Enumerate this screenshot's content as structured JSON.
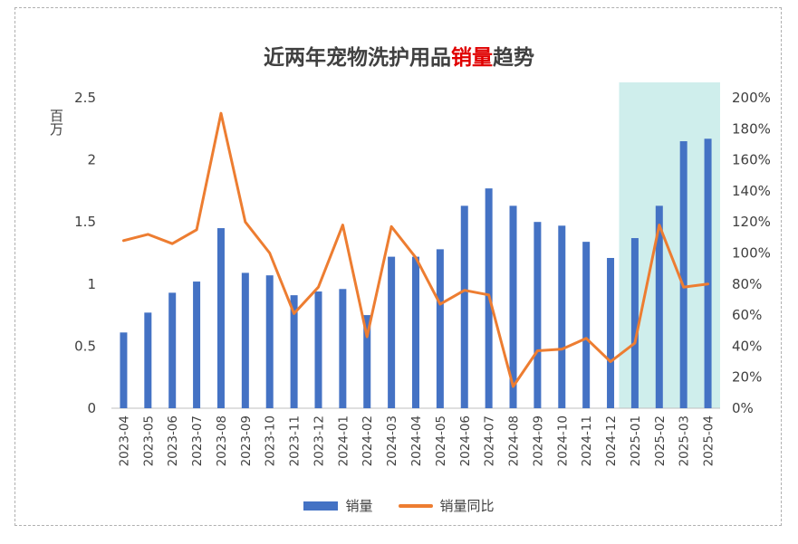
{
  "chart_data": {
    "type": "bar+line",
    "title_prefix": "近两年宠物洗护用品",
    "title_highlight": "销量",
    "title_suffix": "趋势",
    "y_left_unit": "百万",
    "y_left_ticks": [
      "0",
      "0.5",
      "1",
      "1.5",
      "2",
      "2.5"
    ],
    "y_left_range": [
      0,
      2.5
    ],
    "y_right_ticks": [
      "0%",
      "20%",
      "40%",
      "60%",
      "80%",
      "100%",
      "120%",
      "140%",
      "160%",
      "180%",
      "200%"
    ],
    "y_right_range": [
      0,
      200
    ],
    "categories": [
      "2023-04",
      "2023-05",
      "2023-06",
      "2023-07",
      "2023-08",
      "2023-09",
      "2023-10",
      "2023-11",
      "2023-12",
      "2024-01",
      "2024-02",
      "2024-03",
      "2024-04",
      "2024-05",
      "2024-06",
      "2024-07",
      "2024-08",
      "2024-09",
      "2024-10",
      "2024-11",
      "2024-12",
      "2025-01",
      "2025-02",
      "2025-03",
      "2025-04"
    ],
    "series": [
      {
        "name": "销量",
        "type": "bar",
        "axis": "left",
        "values": [
          0.61,
          0.77,
          0.93,
          1.02,
          1.45,
          1.09,
          1.07,
          0.91,
          0.94,
          0.96,
          0.75,
          1.22,
          1.22,
          1.28,
          1.63,
          1.77,
          1.63,
          1.5,
          1.47,
          1.34,
          1.21,
          1.37,
          1.63,
          2.15,
          2.17
        ]
      },
      {
        "name": "销量同比",
        "type": "line",
        "axis": "right",
        "values": [
          108,
          112,
          106,
          115,
          190,
          120,
          100,
          61,
          78,
          118,
          46,
          117,
          97,
          67,
          76,
          73,
          14,
          37,
          38,
          45,
          30,
          42,
          118,
          78,
          80
        ]
      }
    ],
    "highlight_range": [
      "2025-01",
      "2025-04"
    ],
    "colors": {
      "bar": "#4472c4",
      "line": "#ed7d31",
      "highlight": "#cfeeec"
    },
    "grid": false,
    "legend_position": "bottom"
  }
}
